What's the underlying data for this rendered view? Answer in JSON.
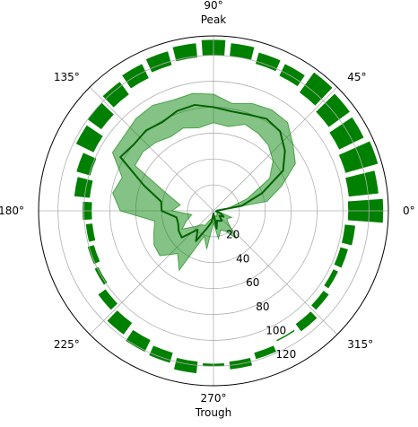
{
  "chart_data": {
    "type": "polar",
    "angle_ticks": [
      {
        "deg": 0,
        "label": "0°"
      },
      {
        "deg": 45,
        "label": "45°"
      },
      {
        "deg": 90,
        "label": "90°",
        "sublabel": "Peak"
      },
      {
        "deg": 135,
        "label": "135°"
      },
      {
        "deg": 180,
        "label": "180°"
      },
      {
        "deg": 225,
        "label": "225°"
      },
      {
        "deg": 270,
        "label": "270°",
        "sublabel": "Trough"
      },
      {
        "deg": 315,
        "label": "315°"
      }
    ],
    "radial_ticks": [
      20,
      40,
      60,
      80,
      100,
      120
    ],
    "radial_label_angle_deg": 292.5,
    "rlim": [
      0,
      135
    ],
    "grid": true,
    "colors": {
      "bars": "#008000",
      "line": "#006400",
      "fill": "#008000"
    },
    "bars": {
      "bottom": [
        104,
        105,
        106,
        108,
        110,
        113,
        116,
        118,
        120,
        120,
        119,
        117,
        114,
        111,
        107,
        103,
        99,
        96,
        94,
        94,
        96,
        99,
        103,
        107,
        111,
        114,
        117,
        118,
        117,
        114,
        111,
        108,
        105,
        103,
        102,
        102
      ],
      "top": [
        131,
        128,
        132,
        129,
        130,
        132,
        126,
        127,
        130,
        132,
        130,
        128,
        126,
        123,
        120,
        118,
        110,
        108,
        101,
        99,
        101,
        102,
        110,
        118,
        121,
        122,
        126,
        120,
        123,
        119,
        112,
        115,
        110,
        107,
        108,
        110
      ]
    },
    "line": {
      "theta_deg": [
        0,
        10,
        20,
        30,
        40,
        50,
        60,
        70,
        80,
        90,
        100,
        110,
        120,
        130,
        140,
        150,
        160,
        170,
        180,
        190,
        200,
        210,
        220,
        230,
        240,
        250,
        260,
        270,
        280,
        290,
        300,
        310,
        320,
        330,
        340,
        350
      ],
      "r": [
        2,
        22,
        40,
        62,
        72,
        80,
        82,
        79,
        78,
        80,
        83,
        82,
        79,
        81,
        80,
        83,
        57,
        41,
        40,
        29,
        29,
        31,
        32,
        19,
        27,
        14,
        9,
        2,
        14,
        8,
        9,
        10,
        6,
        9,
        6,
        2
      ]
    },
    "band": {
      "theta_deg": [
        0,
        10,
        20,
        30,
        40,
        50,
        60,
        70,
        80,
        90,
        100,
        110,
        120,
        130,
        140,
        150,
        160,
        170,
        180,
        190,
        200,
        210,
        220,
        230,
        240,
        250,
        260,
        270,
        280,
        290,
        300,
        310,
        320,
        330,
        340,
        350
      ],
      "lower": [
        2,
        12,
        28,
        50,
        60,
        66,
        69,
        71,
        66,
        68,
        65,
        68,
        66,
        69,
        71,
        70,
        38,
        26,
        32,
        17,
        22,
        28,
        19,
        14,
        13,
        7,
        6,
        2,
        12,
        4,
        5,
        4,
        4,
        3,
        3,
        2
      ],
      "upper": [
        2,
        42,
        56,
        73,
        80,
        89,
        90,
        88,
        84,
        90,
        92,
        91,
        94,
        93,
        90,
        90,
        75,
        79,
        72,
        46,
        49,
        53,
        54,
        43,
        53,
        21,
        30,
        9,
        22,
        16,
        18,
        28,
        15,
        12,
        15,
        4
      ]
    }
  }
}
